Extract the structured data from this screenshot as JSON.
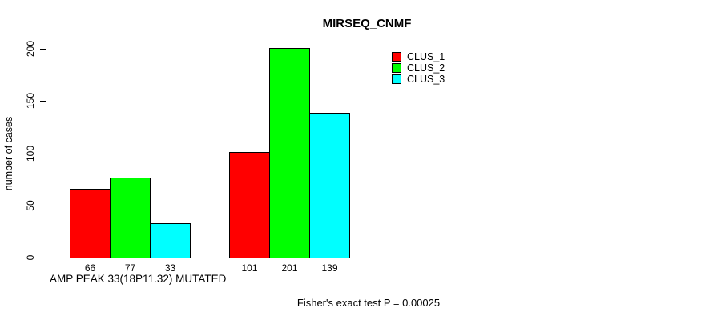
{
  "page": {
    "background": "#ffffff",
    "text_color": "#000000"
  },
  "chart_data": {
    "type": "bar",
    "title": "MIRSEQ_CNMF",
    "ylabel": "number of cases",
    "xlabel": "AMP PEAK 33(18P11.32) MUTATED",
    "annotation": "Fisher's exact test P = 0.00025",
    "ylim": [
      0,
      200
    ],
    "yticks": [
      0,
      50,
      100,
      150,
      200
    ],
    "grid": false,
    "legend_position": "top-right",
    "bar_border_color": "#000000",
    "series": [
      {
        "name": "CLUS_1",
        "color": "#ff0000",
        "values": [
          66,
          101
        ]
      },
      {
        "name": "CLUS_2",
        "color": "#00ff00",
        "values": [
          77,
          201
        ]
      },
      {
        "name": "CLUS_3",
        "color": "#00ffff",
        "values": [
          33,
          139
        ]
      }
    ],
    "bar_value_labels": [
      [
        66,
        77,
        33
      ],
      [
        101,
        201,
        139
      ]
    ]
  }
}
